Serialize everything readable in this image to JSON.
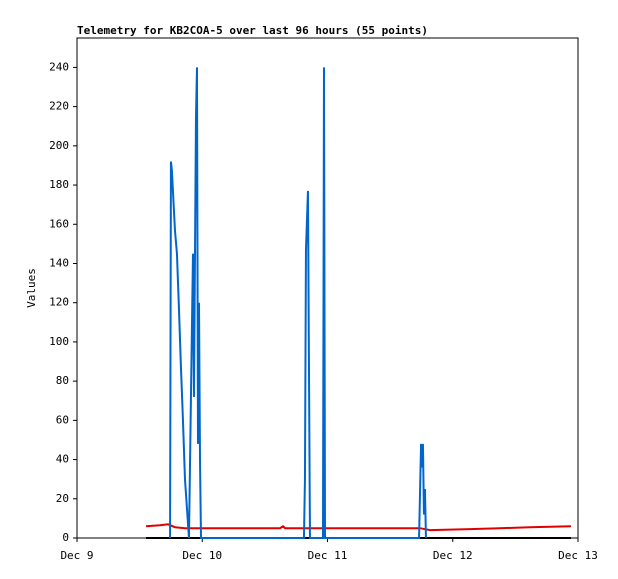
{
  "chart_data": {
    "type": "line",
    "title": "Telemetry for KB2COA-5 over last 96 hours (55 points)",
    "y_label": "Values",
    "xlim": [
      0,
      4
    ],
    "xticks": [
      {
        "value": 0,
        "label": "Dec 9"
      },
      {
        "value": 1,
        "label": "Dec 10"
      },
      {
        "value": 2,
        "label": "Dec 11"
      },
      {
        "value": 3,
        "label": "Dec 12"
      },
      {
        "value": 4,
        "label": "Dec 13"
      }
    ],
    "ylim": [
      0,
      255
    ],
    "yticks": [
      0,
      20,
      40,
      60,
      80,
      100,
      120,
      140,
      160,
      180,
      200,
      220,
      240
    ],
    "grid": false,
    "series": [
      {
        "color": "#000000",
        "x": [
          0.551,
          3.944
        ],
        "values": [
          0,
          0
        ]
      },
      {
        "color": "#e00000",
        "x": [
          0.551,
          0.663,
          0.727,
          0.782,
          0.862,
          0.982,
          1.621,
          1.645,
          1.661,
          2.739,
          2.818,
          3.138,
          3.377,
          3.617,
          3.944
        ],
        "values": [
          6,
          6.5,
          7,
          5.5,
          5,
          5,
          5,
          6,
          5,
          5,
          4,
          4.5,
          5,
          5.5,
          6
        ]
      },
      {
        "color": "#0066cc",
        "x": [
          0.743,
          0.75,
          0.758,
          0.766,
          0.782,
          0.798,
          0.814,
          0.83,
          0.846,
          0.862,
          0.878,
          0.894,
          0.926,
          0.934,
          0.942,
          0.95,
          0.958,
          0.966,
          0.974,
          0.982,
          0.99,
          1.812,
          1.82,
          1.828,
          1.844,
          1.852,
          1.86,
          1.964,
          1.972,
          1.98,
          2.731,
          2.739,
          2.747,
          2.754,
          2.762,
          2.77,
          2.778,
          2.786
        ],
        "values": [
          0,
          192,
          187,
          177,
          157,
          145,
          117,
          87,
          60,
          30,
          15,
          0,
          145,
          72,
          145,
          215,
          240,
          48,
          120,
          40,
          0,
          0,
          30,
          147,
          177,
          88,
          0,
          0,
          240,
          0,
          0,
          24,
          48,
          36,
          48,
          12,
          25,
          0
        ]
      }
    ]
  }
}
